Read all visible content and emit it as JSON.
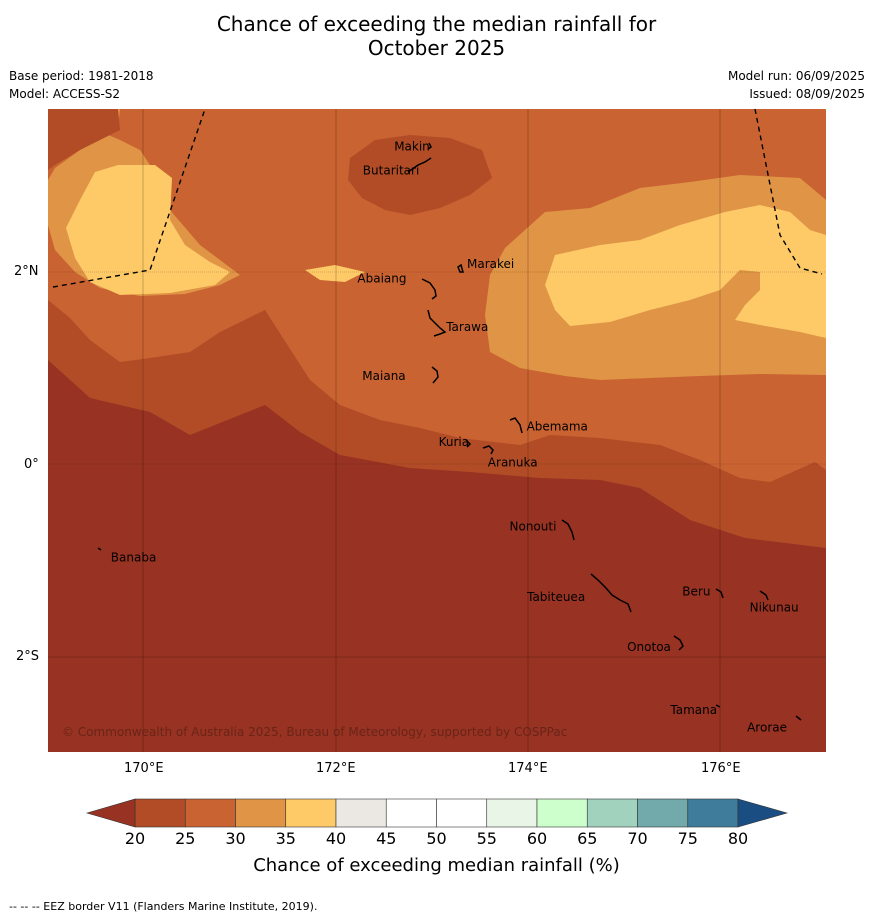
{
  "title_line1": "Chance of exceeding the median rainfall for",
  "title_line2": "October 2025",
  "meta": {
    "base_period": "Base period: 1981-2018",
    "model": "Model: ACCESS-S2",
    "model_run": "Model run: 06/09/2025",
    "issued": "Issued: 08/09/2025"
  },
  "axes": {
    "lon_ticks": [
      {
        "value": 170,
        "label": "170°E"
      },
      {
        "value": 172,
        "label": "172°E"
      },
      {
        "value": 174,
        "label": "174°E"
      },
      {
        "value": 176,
        "label": "176°E"
      }
    ],
    "lat_ticks": [
      {
        "value": 2,
        "label": "2°N"
      },
      {
        "value": 0,
        "label": "0°"
      },
      {
        "value": -2,
        "label": "2°S"
      }
    ],
    "lon_range": [
      169.0,
      177.1
    ],
    "lat_range": [
      -3.0,
      3.7
    ]
  },
  "places": [
    {
      "name": "Makin",
      "lon": 173.0,
      "lat": 3.35
    },
    {
      "name": "Butaritari",
      "lon": 172.85,
      "lat": 3.1
    },
    {
      "name": "Marakei",
      "lon": 173.3,
      "lat": 2.0
    },
    {
      "name": "Abaiang",
      "lon": 172.95,
      "lat": 1.85
    },
    {
      "name": "Tarawa",
      "lon": 173.0,
      "lat": 1.45
    },
    {
      "name": "Maiana",
      "lon": 172.98,
      "lat": 0.92
    },
    {
      "name": "Abemama",
      "lon": 173.9,
      "lat": 0.4
    },
    {
      "name": "Kuria",
      "lon": 173.4,
      "lat": 0.22
    },
    {
      "name": "Aranuka",
      "lon": 173.6,
      "lat": 0.16
    },
    {
      "name": "Banaba",
      "lon": 169.55,
      "lat": -0.87
    },
    {
      "name": "Nonouti",
      "lon": 174.45,
      "lat": -0.65
    },
    {
      "name": "Tabiteuea",
      "lon": 174.8,
      "lat": -1.3
    },
    {
      "name": "Beru",
      "lon": 176.0,
      "lat": -1.33
    },
    {
      "name": "Nikunau",
      "lon": 176.45,
      "lat": -1.35
    },
    {
      "name": "Onotoa",
      "lon": 175.55,
      "lat": -1.82
    },
    {
      "name": "Tamana",
      "lon": 175.98,
      "lat": -2.5
    },
    {
      "name": "Arorae",
      "lon": 176.82,
      "lat": -2.64
    }
  ],
  "copyright": "© Commonwealth of Australia 2025, Bureau of Meteorology, supported by COSPPac",
  "colorbar": {
    "title": "Chance of exceeding median rainfall (%)",
    "ticks": [
      "20",
      "25",
      "30",
      "35",
      "40",
      "45",
      "50",
      "55",
      "60",
      "65",
      "70",
      "75",
      "80"
    ],
    "colors": {
      "below_20": "#983222",
      "20_25": "#b24c27",
      "25_30": "#c96332",
      "30_35": "#e09445",
      "35_40": "#fdca67",
      "40_45": "#ebe8e4",
      "45_50": "#ffffff",
      "50_55": "#ffffff",
      "55_60": "#e9f5e7",
      "60_65": "#ccffcc",
      "65_70": "#a0d2bd",
      "70_75": "#72a9aa",
      "75_80": "#3f7b9a",
      "above_80": "#1a4e83"
    }
  },
  "footer": "--  --  -- EEZ border V11 (Flanders Marine Institute, 2019)."
}
